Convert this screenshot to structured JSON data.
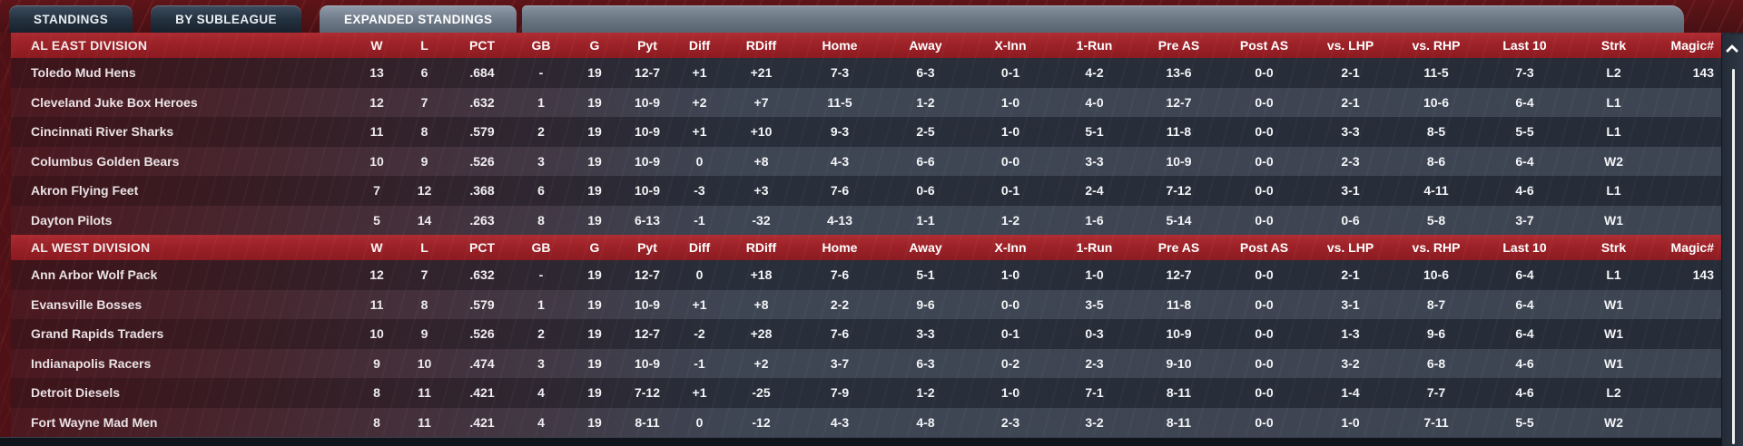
{
  "tabs": [
    {
      "label": "STANDINGS",
      "active": false
    },
    {
      "label": "BY SUBLEAGUE",
      "active": false
    },
    {
      "label": "EXPANDED STANDINGS",
      "active": true
    }
  ],
  "columns": [
    "W",
    "L",
    "PCT",
    "GB",
    "G",
    "Pyt",
    "Diff",
    "RDiff",
    "Home",
    "Away",
    "X-Inn",
    "1-Run",
    "Pre AS",
    "Post AS",
    "vs. LHP",
    "vs. RHP",
    "Last 10",
    "Strk",
    "Magic#"
  ],
  "divisions": [
    {
      "name": "AL EAST DIVISION",
      "teams": [
        {
          "team": "Toledo  Mud Hens",
          "w": "13",
          "l": "6",
          "pct": ".684",
          "gb": "-",
          "g": "19",
          "pyt": "12-7",
          "diff": "+1",
          "rdiff": "+21",
          "home": "7-3",
          "away": "6-3",
          "xinn": "0-1",
          "onerun": "4-2",
          "preas": "13-6",
          "postas": "0-0",
          "vslhp": "2-1",
          "vsrhp": "11-5",
          "last10": "7-3",
          "strk": "L2",
          "magic": "143"
        },
        {
          "team": "Cleveland Juke Box Heroes",
          "w": "12",
          "l": "7",
          "pct": ".632",
          "gb": "1",
          "g": "19",
          "pyt": "10-9",
          "diff": "+2",
          "rdiff": "+7",
          "home": "11-5",
          "away": "1-2",
          "xinn": "1-0",
          "onerun": "4-0",
          "preas": "12-7",
          "postas": "0-0",
          "vslhp": "2-1",
          "vsrhp": "10-6",
          "last10": "6-4",
          "strk": "L1",
          "magic": ""
        },
        {
          "team": "Cincinnati River Sharks",
          "w": "11",
          "l": "8",
          "pct": ".579",
          "gb": "2",
          "g": "19",
          "pyt": "10-9",
          "diff": "+1",
          "rdiff": "+10",
          "home": "9-3",
          "away": "2-5",
          "xinn": "1-0",
          "onerun": "5-1",
          "preas": "11-8",
          "postas": "0-0",
          "vslhp": "3-3",
          "vsrhp": "8-5",
          "last10": "5-5",
          "strk": "L1",
          "magic": ""
        },
        {
          "team": "Columbus Golden Bears",
          "w": "10",
          "l": "9",
          "pct": ".526",
          "gb": "3",
          "g": "19",
          "pyt": "10-9",
          "diff": "0",
          "rdiff": "+8",
          "home": "4-3",
          "away": "6-6",
          "xinn": "0-0",
          "onerun": "3-3",
          "preas": "10-9",
          "postas": "0-0",
          "vslhp": "2-3",
          "vsrhp": "8-6",
          "last10": "6-4",
          "strk": "W2",
          "magic": ""
        },
        {
          "team": "Akron  Flying Feet",
          "w": "7",
          "l": "12",
          "pct": ".368",
          "gb": "6",
          "g": "19",
          "pyt": "10-9",
          "diff": "-3",
          "rdiff": "+3",
          "home": "7-6",
          "away": "0-6",
          "xinn": "0-1",
          "onerun": "2-4",
          "preas": "7-12",
          "postas": "0-0",
          "vslhp": "3-1",
          "vsrhp": "4-11",
          "last10": "4-6",
          "strk": "L1",
          "magic": ""
        },
        {
          "team": "Dayton Pilots",
          "w": "5",
          "l": "14",
          "pct": ".263",
          "gb": "8",
          "g": "19",
          "pyt": "6-13",
          "diff": "-1",
          "rdiff": "-32",
          "home": "4-13",
          "away": "1-1",
          "xinn": "1-2",
          "onerun": "1-6",
          "preas": "5-14",
          "postas": "0-0",
          "vslhp": "0-6",
          "vsrhp": "5-8",
          "last10": "3-7",
          "strk": "W1",
          "magic": ""
        }
      ]
    },
    {
      "name": "AL WEST DIVISION",
      "teams": [
        {
          "team": "Ann Arbor Wolf Pack",
          "w": "12",
          "l": "7",
          "pct": ".632",
          "gb": "-",
          "g": "19",
          "pyt": "12-7",
          "diff": "0",
          "rdiff": "+18",
          "home": "7-6",
          "away": "5-1",
          "xinn": "1-0",
          "onerun": "1-0",
          "preas": "12-7",
          "postas": "0-0",
          "vslhp": "2-1",
          "vsrhp": "10-6",
          "last10": "6-4",
          "strk": "L1",
          "magic": "143"
        },
        {
          "team": "Evansville Bosses",
          "w": "11",
          "l": "8",
          "pct": ".579",
          "gb": "1",
          "g": "19",
          "pyt": "10-9",
          "diff": "+1",
          "rdiff": "+8",
          "home": "2-2",
          "away": "9-6",
          "xinn": "0-0",
          "onerun": "3-5",
          "preas": "11-8",
          "postas": "0-0",
          "vslhp": "3-1",
          "vsrhp": "8-7",
          "last10": "6-4",
          "strk": "W1",
          "magic": ""
        },
        {
          "team": "Grand Rapids Traders",
          "w": "10",
          "l": "9",
          "pct": ".526",
          "gb": "2",
          "g": "19",
          "pyt": "12-7",
          "diff": "-2",
          "rdiff": "+28",
          "home": "7-6",
          "away": "3-3",
          "xinn": "0-1",
          "onerun": "0-3",
          "preas": "10-9",
          "postas": "0-0",
          "vslhp": "1-3",
          "vsrhp": "9-6",
          "last10": "6-4",
          "strk": "W1",
          "magic": ""
        },
        {
          "team": "Indianapolis Racers",
          "w": "9",
          "l": "10",
          "pct": ".474",
          "gb": "3",
          "g": "19",
          "pyt": "10-9",
          "diff": "-1",
          "rdiff": "+2",
          "home": "3-7",
          "away": "6-3",
          "xinn": "0-2",
          "onerun": "2-3",
          "preas": "9-10",
          "postas": "0-0",
          "vslhp": "3-2",
          "vsrhp": "6-8",
          "last10": "4-6",
          "strk": "W1",
          "magic": ""
        },
        {
          "team": "Detroit Diesels",
          "w": "8",
          "l": "11",
          "pct": ".421",
          "gb": "4",
          "g": "19",
          "pyt": "7-12",
          "diff": "+1",
          "rdiff": "-25",
          "home": "7-9",
          "away": "1-2",
          "xinn": "1-0",
          "onerun": "7-1",
          "preas": "8-11",
          "postas": "0-0",
          "vslhp": "1-4",
          "vsrhp": "7-7",
          "last10": "4-6",
          "strk": "L2",
          "magic": ""
        },
        {
          "team": "Fort Wayne Mad Men",
          "w": "8",
          "l": "11",
          "pct": ".421",
          "gb": "4",
          "g": "19",
          "pyt": "8-11",
          "diff": "0",
          "rdiff": "-12",
          "home": "4-3",
          "away": "4-8",
          "xinn": "2-3",
          "onerun": "3-2",
          "preas": "8-11",
          "postas": "0-0",
          "vslhp": "1-0",
          "vsrhp": "7-11",
          "last10": "5-5",
          "strk": "W2",
          "magic": ""
        }
      ]
    }
  ],
  "scrollbar": {
    "up_icon": "chevron-up"
  },
  "colors": {
    "header_red": "#a2262b",
    "positive_green": "#21cd42",
    "negative_red": "#e2646b",
    "row_dark": "#262c38",
    "row_light": "#3c4351",
    "tab_active_gray": "#76828f",
    "background_maroon": "#451015"
  }
}
